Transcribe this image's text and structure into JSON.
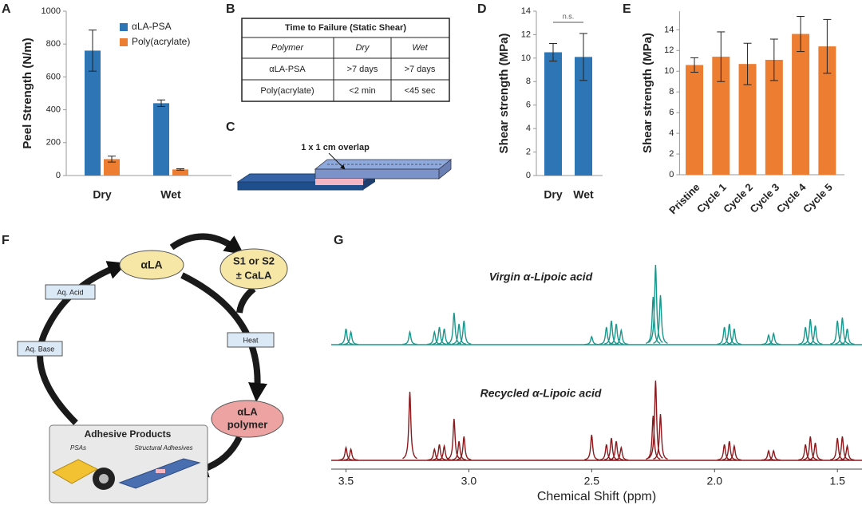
{
  "chart_data": [
    {
      "panel": "A",
      "type": "bar",
      "ylabel": "Peel Strength (N/m)",
      "categories": [
        "Dry",
        "Wet"
      ],
      "series": [
        {
          "name": "αLA-PSA",
          "color": "#2e75b6",
          "values": [
            760,
            440
          ],
          "errors": [
            125,
            20
          ]
        },
        {
          "name": "Poly(acrylate)",
          "color": "#ed7d31",
          "values": [
            100,
            37
          ],
          "errors": [
            18,
            4
          ]
        }
      ],
      "ylim": [
        0,
        1000
      ],
      "yticks": [
        0,
        200,
        400,
        600,
        800,
        1000
      ],
      "legend": "upper right"
    },
    {
      "panel": "D",
      "type": "bar",
      "ylabel": "Shear strength (MPa)",
      "categories": [
        "Dry",
        "Wet"
      ],
      "values": [
        10.5,
        10.1
      ],
      "errors": [
        0.75,
        2.0
      ],
      "color": "#2e75b6",
      "ylim": [
        0,
        14
      ],
      "yticks": [
        0,
        2,
        4,
        6,
        8,
        10,
        12,
        14
      ],
      "annotation": "n.s."
    },
    {
      "panel": "E",
      "type": "bar",
      "ylabel": "Shear strength (MPa)",
      "categories": [
        "Pristine",
        "Cycle 1",
        "Cycle 2",
        "Cycle 3",
        "Cycle 4",
        "Cycle 5"
      ],
      "values": [
        10.6,
        11.4,
        10.7,
        11.1,
        13.6,
        12.4
      ],
      "errors": [
        0.7,
        2.4,
        2.0,
        2.0,
        1.7,
        2.6
      ],
      "color": "#ed7d31",
      "ylim": [
        0,
        15.8
      ],
      "yticks": [
        0,
        2,
        4,
        6,
        8,
        10,
        12,
        14
      ]
    },
    {
      "panel": "G",
      "type": "spectrum",
      "xlabel": "Chemical Shift (ppm)",
      "xlim": [
        3.56,
        1.4
      ],
      "xticks": [
        3.5,
        {
          "value": 3,
          "label": "3.0"
        },
        2.5,
        {
          "value": 2,
          "label": "2.0"
        },
        1.5
      ],
      "series": [
        {
          "name": "Virgin α-Lipoic acid",
          "color": "#1a978c",
          "x": [
            3.5,
            3.48,
            3.24,
            3.14,
            3.12,
            3.1,
            3.06,
            3.04,
            3.02,
            2.5,
            2.44,
            2.42,
            2.4,
            2.38,
            2.25,
            2.24,
            2.22,
            1.96,
            1.94,
            1.92,
            1.78,
            1.76,
            1.63,
            1.61,
            1.59,
            1.5,
            1.48,
            1.46
          ],
          "values": [
            20,
            16,
            16,
            16,
            22,
            20,
            40,
            26,
            30,
            10,
            22,
            30,
            26,
            18,
            60,
            100,
            62,
            22,
            26,
            20,
            12,
            14,
            22,
            32,
            24,
            30,
            34,
            20
          ]
        },
        {
          "name": "Recycled α-Lipoic acid",
          "color": "#8b1a1e",
          "x": [
            3.5,
            3.48,
            3.24,
            3.14,
            3.12,
            3.1,
            3.06,
            3.04,
            3.02,
            2.5,
            2.44,
            2.42,
            2.4,
            2.38,
            2.25,
            2.24,
            2.22,
            1.96,
            1.94,
            1.92,
            1.78,
            1.76,
            1.63,
            1.61,
            1.59,
            1.5,
            1.48,
            1.46
          ],
          "values": [
            16,
            14,
            86,
            14,
            20,
            18,
            52,
            24,
            30,
            32,
            20,
            28,
            24,
            16,
            56,
            100,
            58,
            20,
            24,
            18,
            12,
            12,
            20,
            30,
            22,
            28,
            30,
            18
          ]
        }
      ]
    }
  ],
  "table": {
    "panel": "B",
    "title": "Time to Failure (Static Shear)",
    "columns": [
      "Polymer",
      "Dry",
      "Wet"
    ],
    "rows": [
      [
        "αLA-PSA",
        ">7 days",
        ">7 days"
      ],
      [
        "Poly(acrylate)",
        "<2 min",
        "<45 sec"
      ]
    ]
  },
  "overlap_diagram": {
    "panel": "C",
    "label": "1 x 1 cm overlap"
  },
  "cycle_diagram": {
    "panel": "F",
    "monomer": "αLA",
    "solvent": [
      "S1 or S2",
      "± CaLA"
    ],
    "heat": "Heat",
    "polymer": [
      "αLA",
      "polymer"
    ],
    "base": "Aq. Base",
    "acid": "Aq. Acid",
    "products": {
      "title": "Adhesive Products",
      "items": [
        "PSAs",
        "Structural Adhesives"
      ]
    }
  }
}
